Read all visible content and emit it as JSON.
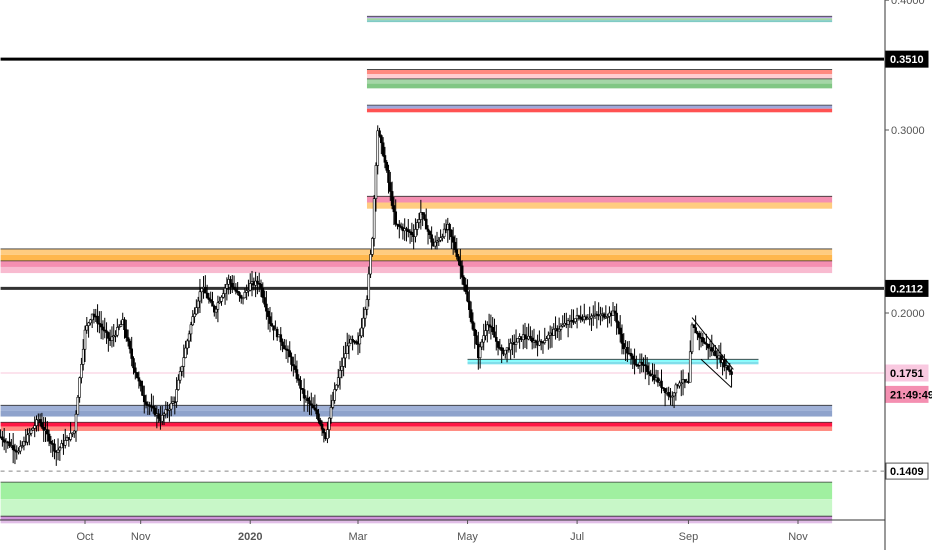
{
  "chart_data": {
    "type": "candlestick",
    "scale": "log",
    "y_ticks": [
      {
        "value": 0.4,
        "label": "0.4000"
      },
      {
        "value": 0.3,
        "label": "0.3000"
      },
      {
        "value": 0.2,
        "label": "0.2000"
      }
    ],
    "x_ticks": [
      {
        "label": "Oct",
        "date": "2019-10-01",
        "bold": false
      },
      {
        "label": "Nov",
        "date": "2019-11-01",
        "bold": false
      },
      {
        "label": "2020",
        "date": "2020-01-01",
        "bold": true
      },
      {
        "label": "Mar",
        "date": "2020-03-01",
        "bold": false
      },
      {
        "label": "May",
        "date": "2020-05-01",
        "bold": false
      },
      {
        "label": "Jul",
        "date": "2020-07-01",
        "bold": false
      },
      {
        "label": "Sep",
        "date": "2020-09-01",
        "bold": false
      },
      {
        "label": "Nov",
        "date": "2020-11-01",
        "bold": false
      }
    ],
    "price_badges": [
      {
        "value": 0.351,
        "label": "0.3510",
        "bg": "#000000",
        "fg": "#ffffff"
      },
      {
        "value": 0.2112,
        "label": "0.2112",
        "bg": "#000000",
        "fg": "#ffffff"
      },
      {
        "value": 0.1751,
        "label": "0.1751",
        "bg": "#f9c9e0",
        "fg": "#000000"
      },
      {
        "value": 0.1409,
        "label": "0.1409",
        "bg": "#ffffff",
        "fg": "#000000",
        "border": "#555555"
      }
    ],
    "countdown": {
      "label": "21:49:49",
      "value": 0.167,
      "bg": "#f48fb1",
      "fg": "#000000"
    },
    "horizontal_lines": [
      {
        "value": 0.351,
        "color": "#000000",
        "start": "2019-08-15"
      },
      {
        "value": 0.2112,
        "color": "#333333",
        "start": "2019-08-15"
      },
      {
        "value": 0.1409,
        "color": "#888888",
        "start": "2019-08-15",
        "dashed": true
      },
      {
        "value": 0.1751,
        "color": "#f6b5cf",
        "start": "2019-08-15",
        "thin": true
      }
    ],
    "zones": [
      {
        "from": 0.381,
        "to": 0.386,
        "start": "2020-03-06",
        "end": "2020-11-20",
        "colors": [
          "#b39ddb",
          "#a5d6a7",
          "#80cbc4"
        ]
      },
      {
        "from": 0.336,
        "to": 0.343,
        "start": "2020-03-06",
        "end": "2020-11-20",
        "colors": [
          "#ff8a80",
          "#ffcdd2"
        ]
      },
      {
        "from": 0.329,
        "to": 0.336,
        "start": "2020-03-06",
        "end": "2020-11-20",
        "colors": [
          "#a5d6a7",
          "#81c784"
        ]
      },
      {
        "from": 0.312,
        "to": 0.317,
        "start": "2020-03-06",
        "end": "2020-11-20",
        "colors": [
          "#9fa8da",
          "#ff5252"
        ]
      },
      {
        "from": 0.252,
        "to": 0.259,
        "start": "2020-03-06",
        "end": "2020-11-20",
        "colors": [
          "#f48fb1",
          "#ffcc80"
        ]
      },
      {
        "from": 0.2245,
        "to": 0.2305,
        "start": "2019-08-15",
        "end": "2020-11-20",
        "colors": [
          "#ffcc80",
          "#ffb74d"
        ]
      },
      {
        "from": 0.2185,
        "to": 0.2245,
        "start": "2019-08-15",
        "end": "2020-11-20",
        "colors": [
          "#f48fb1",
          "#f8bbd0"
        ]
      },
      {
        "from": 0.159,
        "to": 0.163,
        "start": "2019-08-15",
        "end": "2020-11-20",
        "colors": [
          "#9fb0d6",
          "#8fa3cc"
        ]
      },
      {
        "from": 0.154,
        "to": 0.157,
        "start": "2019-08-15",
        "end": "2020-11-20",
        "colors": [
          "#ff1744",
          "#ff8a80"
        ]
      },
      {
        "from": 0.1785,
        "to": 0.1805,
        "start": "2020-05-01",
        "end": "2020-10-10",
        "colors": [
          "#84ffff",
          "#80deea"
        ]
      },
      {
        "from": 0.1275,
        "to": 0.1375,
        "start": "2019-08-15",
        "end": "2020-11-20",
        "colors": [
          "#a0f0a0",
          "#c8f7c8"
        ]
      },
      {
        "from": 0.1255,
        "to": 0.1275,
        "start": "2019-08-15",
        "end": "2020-11-20",
        "colors": [
          "#ce93d8",
          "#e1bee7"
        ]
      }
    ],
    "trend_lines": [
      {
        "from": [
          "2020-09-03",
          0.198
        ],
        "to": [
          "2020-09-26",
          0.1765
        ],
        "color": "#000000"
      },
      {
        "from": [
          "2020-09-08",
          0.1805
        ],
        "to": [
          "2020-09-25",
          0.1695
        ],
        "color": "#000000"
      }
    ],
    "series_anchors": [
      [
        "2019-08-15",
        0.152
      ],
      [
        "2019-08-25",
        0.147
      ],
      [
        "2019-09-05",
        0.158
      ],
      [
        "2019-09-15",
        0.147
      ],
      [
        "2019-09-25",
        0.154
      ],
      [
        "2019-10-01",
        0.192
      ],
      [
        "2019-10-05",
        0.2
      ],
      [
        "2019-10-15",
        0.188
      ],
      [
        "2019-10-22",
        0.196
      ],
      [
        "2019-10-28",
        0.178
      ],
      [
        "2019-11-03",
        0.165
      ],
      [
        "2019-11-12",
        0.158
      ],
      [
        "2019-11-20",
        0.165
      ],
      [
        "2019-11-30",
        0.198
      ],
      [
        "2019-12-05",
        0.212
      ],
      [
        "2019-12-12",
        0.201
      ],
      [
        "2019-12-20",
        0.215
      ],
      [
        "2019-12-27",
        0.206
      ],
      [
        "2020-01-01",
        0.213
      ],
      [
        "2020-01-06",
        0.214
      ],
      [
        "2020-01-12",
        0.196
      ],
      [
        "2020-01-22",
        0.183
      ],
      [
        "2020-01-31",
        0.166
      ],
      [
        "2020-02-07",
        0.16
      ],
      [
        "2020-02-12",
        0.152
      ],
      [
        "2020-02-17",
        0.168
      ],
      [
        "2020-02-25",
        0.188
      ],
      [
        "2020-03-01",
        0.186
      ],
      [
        "2020-03-06",
        0.207
      ],
      [
        "2020-03-09",
        0.237
      ],
      [
        "2020-03-12",
        0.3
      ],
      [
        "2020-03-15",
        0.285
      ],
      [
        "2020-03-22",
        0.243
      ],
      [
        "2020-04-01",
        0.238
      ],
      [
        "2020-04-05",
        0.25
      ],
      [
        "2020-04-12",
        0.232
      ],
      [
        "2020-04-20",
        0.242
      ],
      [
        "2020-04-27",
        0.222
      ],
      [
        "2020-05-01",
        0.205
      ],
      [
        "2020-05-07",
        0.182
      ],
      [
        "2020-05-12",
        0.196
      ],
      [
        "2020-05-20",
        0.183
      ],
      [
        "2020-06-01",
        0.19
      ],
      [
        "2020-06-10",
        0.187
      ],
      [
        "2020-06-20",
        0.193
      ],
      [
        "2020-07-01",
        0.198
      ],
      [
        "2020-07-15",
        0.199
      ],
      [
        "2020-07-22",
        0.2
      ],
      [
        "2020-07-26",
        0.187
      ],
      [
        "2020-08-01",
        0.18
      ],
      [
        "2020-08-08",
        0.177
      ],
      [
        "2020-08-15",
        0.172
      ],
      [
        "2020-08-22",
        0.166
      ],
      [
        "2020-08-27",
        0.172
      ],
      [
        "2020-09-01",
        0.171
      ],
      [
        "2020-09-03",
        0.194
      ],
      [
        "2020-09-10",
        0.187
      ],
      [
        "2020-09-17",
        0.182
      ],
      [
        "2020-09-25",
        0.175
      ]
    ]
  }
}
